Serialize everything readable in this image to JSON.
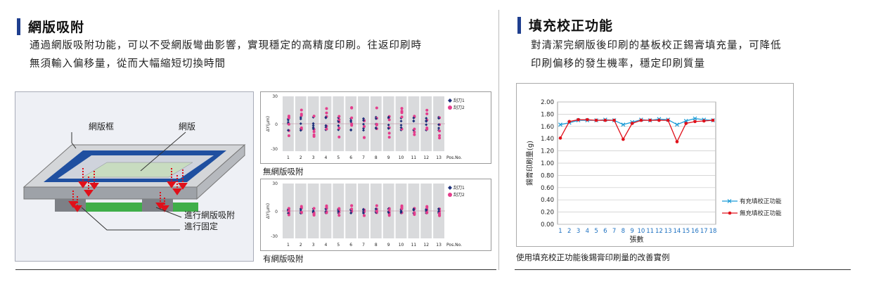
{
  "left": {
    "title": "網版吸附",
    "desc_line1": "通過網版吸附功能，可以不受網版彎曲影響，實現穩定的高精度印刷。往返印刷時",
    "desc_line2": "無須輸入偏移量，從而大幅縮短切換時間",
    "diagram": {
      "label_frame": "網版框",
      "label_screen": "網版",
      "label_suction1": "進行網版吸附",
      "label_suction2": "進行固定"
    },
    "plot_top": {
      "caption": "無網版吸附",
      "ylabel": "ΔY(μm)",
      "y_ticks": [
        "30",
        "0",
        "-30"
      ],
      "x_ticks": [
        "1",
        "2",
        "3",
        "4",
        "5",
        "6",
        "7",
        "8",
        "9",
        "10",
        "11",
        "12",
        "13"
      ],
      "x_suffix": "Pos.No.",
      "legend": [
        "刮刀1",
        "刮刀2"
      ]
    },
    "plot_bottom": {
      "caption": "有網版吸附",
      "ylabel": "ΔY(μm)",
      "y_ticks": [
        "30",
        "0",
        "-30"
      ],
      "x_ticks": [
        "1",
        "2",
        "3",
        "4",
        "5",
        "6",
        "7",
        "8",
        "9",
        "10",
        "11",
        "12",
        "13"
      ],
      "x_suffix": "Pos.No.",
      "legend": [
        "刮刀1",
        "刮刀2"
      ]
    }
  },
  "right": {
    "title": "填充校正功能",
    "desc_line1": "對清潔完網版後印刷的基板校正錫膏填充量，可降低",
    "desc_line2": "印刷偏移的發生機率，穩定印刷質量",
    "caption": "使用填充校正功能後錫膏印刷量的改善實例"
  },
  "colors": {
    "accent": "#1f3f8f",
    "series_blue": "#1a9bd7",
    "series_red": "#e0101a",
    "dot_navy": "#1c2f7a",
    "dot_pink": "#e43d8c"
  },
  "chart_data": {
    "type": "line",
    "xlabel": "張數",
    "ylabel": "錫膏印刷量(g)",
    "x": [
      1,
      2,
      3,
      4,
      5,
      6,
      7,
      8,
      9,
      10,
      11,
      12,
      13,
      14,
      15,
      16,
      17,
      18
    ],
    "ylim": [
      0.0,
      2.0
    ],
    "y_ticks": [
      "0.00",
      "0.20",
      "0.40",
      "0.60",
      "0.80",
      "1.00",
      "1.20",
      "1.40",
      "1.60",
      "1.80",
      "2.00"
    ],
    "grid": true,
    "legend_position": "right",
    "series": [
      {
        "name": "有充填校正功能",
        "values": [
          1.63,
          1.66,
          1.7,
          1.7,
          1.7,
          1.71,
          1.7,
          1.63,
          1.67,
          1.71,
          1.7,
          1.72,
          1.71,
          1.63,
          1.69,
          1.73,
          1.71,
          1.7
        ]
      },
      {
        "name": "無充填校正功能",
        "values": [
          1.41,
          1.68,
          1.71,
          1.71,
          1.7,
          1.7,
          1.7,
          1.39,
          1.65,
          1.7,
          1.7,
          1.7,
          1.7,
          1.35,
          1.65,
          1.68,
          1.69,
          1.7
        ]
      }
    ]
  }
}
